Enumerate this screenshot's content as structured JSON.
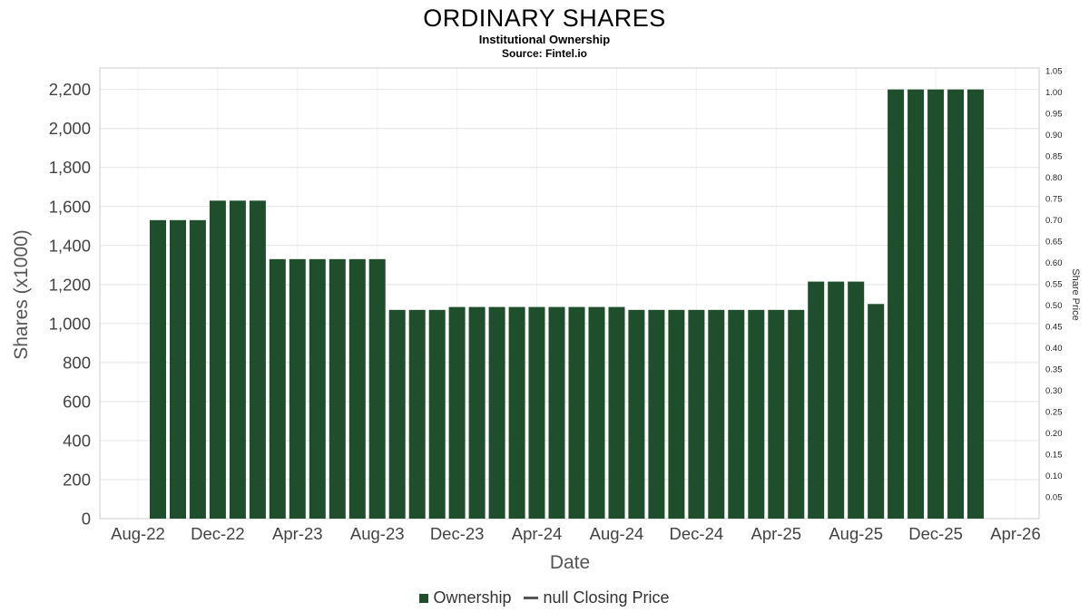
{
  "header": {
    "title": "ORDINARY SHARES",
    "subtitle": "Institutional Ownership",
    "source": "Source: Fintel.io"
  },
  "chart_data": {
    "type": "bar",
    "title": "ORDINARY SHARES",
    "subtitle": "Institutional Ownership",
    "source": "Source: Fintel.io",
    "xlabel": "Date",
    "ylabel_left": "Shares (x1000)",
    "ylabel_right": "Share Price",
    "bar_color": "#1e4e2c",
    "grid": true,
    "legend_position": "bottom",
    "ylim_left": [
      0,
      2310
    ],
    "ylim_right": [
      0,
      1.057
    ],
    "categories": [
      "Sep-22",
      "Oct-22",
      "Nov-22",
      "Dec-22",
      "Jan-23",
      "Feb-23",
      "Mar-23",
      "Apr-23",
      "May-23",
      "Jun-23",
      "Jul-23",
      "Aug-23",
      "Sep-23",
      "Oct-23",
      "Nov-23",
      "Dec-23",
      "Jan-24",
      "Feb-24",
      "Mar-24",
      "Apr-24",
      "May-24",
      "Jun-24",
      "Jul-24",
      "Aug-24",
      "Sep-24",
      "Oct-24",
      "Nov-24",
      "Dec-24",
      "Jan-25",
      "Feb-25",
      "Mar-25",
      "Apr-25",
      "May-25",
      "Jun-25",
      "Jul-25",
      "Aug-25",
      "Sep-25",
      "Oct-25",
      "Nov-25",
      "Dec-25",
      "Jan-26",
      "Feb-26"
    ],
    "values": [
      1530,
      1530,
      1530,
      1630,
      1630,
      1630,
      1330,
      1330,
      1330,
      1330,
      1330,
      1330,
      1070,
      1070,
      1070,
      1085,
      1085,
      1085,
      1085,
      1085,
      1085,
      1085,
      1085,
      1085,
      1070,
      1070,
      1070,
      1070,
      1070,
      1070,
      1070,
      1070,
      1070,
      1215,
      1215,
      1215,
      1100,
      2200,
      2200,
      2200,
      2200,
      2200
    ],
    "x_axis_labels": [
      "Aug-22",
      "Dec-22",
      "Apr-23",
      "Aug-23",
      "Dec-23",
      "Apr-24",
      "Aug-24",
      "Dec-24",
      "Apr-25",
      "Aug-25",
      "Dec-25",
      "Apr-26"
    ],
    "x_tick_months": [
      0,
      4,
      8,
      12,
      16,
      20,
      24,
      28,
      32,
      36,
      40,
      44
    ],
    "left_ticks": [
      "0",
      "200",
      "400",
      "600",
      "800",
      "1,000",
      "1,200",
      "1,400",
      "1,600",
      "1,800",
      "2,000",
      "2,200"
    ],
    "left_tick_values": [
      0,
      200,
      400,
      600,
      800,
      1000,
      1200,
      1400,
      1600,
      1800,
      2000,
      2200
    ],
    "right_ticks": [
      "0.05",
      "0.10",
      "0.15",
      "0.20",
      "0.25",
      "0.30",
      "0.35",
      "0.40",
      "0.45",
      "0.50",
      "0.55",
      "0.60",
      "0.65",
      "0.70",
      "0.75",
      "0.80",
      "0.85",
      "0.90",
      "0.95",
      "1.00",
      "1.05"
    ],
    "right_tick_values": [
      0.05,
      0.1,
      0.15,
      0.2,
      0.25,
      0.3,
      0.35,
      0.4,
      0.45,
      0.5,
      0.55,
      0.6,
      0.65,
      0.7,
      0.75,
      0.8,
      0.85,
      0.9,
      0.95,
      1.0,
      1.05
    ],
    "legend": [
      {
        "label": "Ownership",
        "marker": "square",
        "color": "#1e4e2c"
      },
      {
        "label": "null Closing Price",
        "marker": "line",
        "color": "#555555"
      }
    ]
  }
}
